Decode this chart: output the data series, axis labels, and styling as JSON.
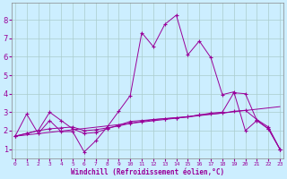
{
  "xlabel": "Windchill (Refroidissement éolien,°C)",
  "bg_color": "#cceeff",
  "grid_color": "#aacccc",
  "line_color": "#990099",
  "x_ticks": [
    0,
    1,
    2,
    3,
    4,
    5,
    6,
    7,
    8,
    9,
    10,
    11,
    12,
    13,
    14,
    15,
    16,
    17,
    18,
    19,
    20,
    21,
    22,
    23
  ],
  "y_ticks": [
    1,
    2,
    3,
    4,
    5,
    6,
    7,
    8
  ],
  "xlim": [
    -0.3,
    23.3
  ],
  "ylim": [
    0.5,
    8.9
  ],
  "series": [
    {
      "x": [
        0,
        1,
        2,
        3,
        4,
        5,
        6,
        7,
        8,
        9,
        10,
        11,
        12,
        13,
        14,
        15,
        16,
        17,
        18,
        19,
        20,
        21,
        22,
        23
      ],
      "y": [
        1.7,
        2.9,
        1.85,
        2.55,
        1.95,
        1.95,
        0.85,
        1.45,
        2.2,
        3.05,
        3.9,
        7.3,
        6.55,
        7.75,
        8.25,
        6.1,
        6.85,
        5.95,
        3.95,
        4.1,
        2.0,
        2.55,
        2.1,
        1.0
      ],
      "has_markers": true
    },
    {
      "x": [
        0,
        1,
        2,
        3,
        4,
        5,
        6,
        7,
        8,
        9,
        10,
        11,
        12,
        13,
        14,
        15,
        16,
        17,
        18,
        19,
        20,
        21,
        22,
        23
      ],
      "y": [
        1.7,
        1.85,
        2.0,
        2.1,
        2.15,
        2.2,
        2.0,
        2.05,
        2.15,
        2.25,
        2.4,
        2.5,
        2.6,
        2.65,
        2.7,
        2.75,
        2.85,
        2.9,
        2.95,
        3.05,
        3.1,
        2.6,
        2.2,
        1.0
      ],
      "has_markers": true
    },
    {
      "x": [
        0,
        1,
        2,
        3,
        4,
        5,
        6,
        7,
        8,
        9,
        10,
        11,
        12,
        13,
        14,
        15,
        16,
        17,
        18,
        19,
        20,
        21,
        22,
        23
      ],
      "y": [
        1.7,
        1.85,
        2.0,
        3.0,
        2.55,
        2.1,
        1.85,
        1.9,
        2.1,
        2.3,
        2.5,
        2.55,
        2.6,
        2.65,
        2.7,
        2.75,
        2.85,
        2.95,
        3.0,
        4.05,
        4.0,
        2.55,
        2.1,
        1.0
      ],
      "has_markers": true
    },
    {
      "x": [
        0,
        23
      ],
      "y": [
        1.7,
        3.3
      ],
      "has_markers": false
    }
  ]
}
